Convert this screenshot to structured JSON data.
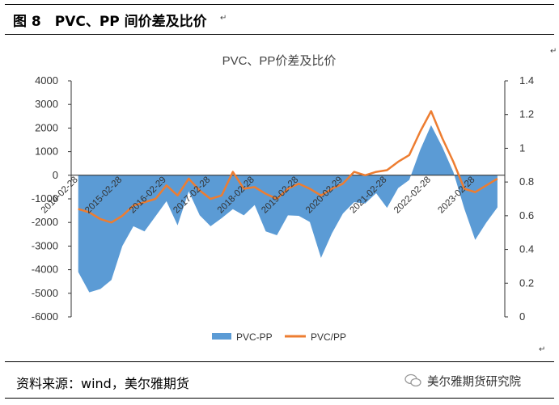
{
  "header": {
    "figure_title": "图 8　PVC、PP 间价差及比价"
  },
  "footer": {
    "source": "资料来源：wind，美尔雅期货",
    "watermark": "美尔雅期货研究院"
  },
  "marks": {
    "paragraph": "↵"
  },
  "chart_data": {
    "type": "area",
    "title": "PVC、PP价差及比价",
    "x_ticks": [
      "2014-02-28",
      "2015-02-28",
      "2016-02-29",
      "2017-02-28",
      "2018-02-28",
      "2019-02-28",
      "2020-02-29",
      "2021-02-28",
      "2022-02-28",
      "2023-02-28"
    ],
    "y_left": {
      "ticks": [
        "4000",
        "3000",
        "2000",
        "1000",
        "0",
        "-1000",
        "-2000",
        "-3000",
        "-4000",
        "-5000",
        "-6000"
      ],
      "ylim": [
        -6000,
        4000
      ]
    },
    "y_right": {
      "ticks": [
        "1.4",
        "1.2",
        "1",
        "0.8",
        "0.6",
        "0.4",
        "0.2",
        "0"
      ],
      "ylim": [
        0,
        1.4
      ]
    },
    "legend_position": "bottom",
    "colors": {
      "spread": "#5b9bd5",
      "ratio": "#ed7d31"
    },
    "series": [
      {
        "name": "PVC-PP",
        "axis": "left",
        "style": "area",
        "x": [
          "2014-02-28",
          "2014-05-31",
          "2014-08-31",
          "2014-11-30",
          "2015-02-28",
          "2015-05-31",
          "2015-08-31",
          "2015-11-30",
          "2016-02-29",
          "2016-05-31",
          "2016-08-31",
          "2016-11-30",
          "2017-02-28",
          "2017-05-31",
          "2017-08-31",
          "2017-11-30",
          "2018-02-28",
          "2018-05-31",
          "2018-08-31",
          "2018-11-30",
          "2019-02-28",
          "2019-05-31",
          "2019-08-31",
          "2019-11-30",
          "2020-02-29",
          "2020-05-31",
          "2020-08-31",
          "2020-11-30",
          "2021-02-28",
          "2021-05-31",
          "2021-08-31",
          "2021-11-30",
          "2022-02-28",
          "2022-05-31",
          "2022-08-31",
          "2022-11-30",
          "2023-02-28",
          "2023-05-31",
          "2023-08-31"
        ],
        "values": [
          -3800,
          -4900,
          -5000,
          -4200,
          -3000,
          -2400,
          -2200,
          -1800,
          -1400,
          -2000,
          -800,
          -1400,
          -2100,
          -2000,
          -1200,
          -1700,
          -1500,
          -2200,
          -2600,
          -2000,
          -1600,
          -2100,
          -3200,
          -2400,
          -1800,
          -900,
          -1200,
          -1000,
          -1200,
          -600,
          -500,
          1200,
          2000,
          1500,
          200,
          -1600,
          -2500,
          -2000,
          -1600
        ]
      },
      {
        "name": "PVC/PP",
        "axis": "right",
        "style": "line",
        "x": [
          "2014-02-28",
          "2014-05-31",
          "2014-08-31",
          "2014-11-30",
          "2015-02-28",
          "2015-05-31",
          "2015-08-31",
          "2015-11-30",
          "2016-02-29",
          "2016-05-31",
          "2016-08-31",
          "2016-11-30",
          "2017-02-28",
          "2017-05-31",
          "2017-08-31",
          "2017-11-30",
          "2018-02-28",
          "2018-05-31",
          "2018-08-31",
          "2018-11-30",
          "2019-02-28",
          "2019-05-31",
          "2019-08-31",
          "2019-11-30",
          "2020-02-29",
          "2020-05-31",
          "2020-08-31",
          "2020-11-30",
          "2021-02-28",
          "2021-05-31",
          "2021-08-31",
          "2021-11-30",
          "2022-02-28",
          "2022-05-31",
          "2022-08-31",
          "2022-11-30",
          "2023-02-28",
          "2023-05-31",
          "2023-08-31"
        ],
        "values": [
          0.64,
          0.62,
          0.58,
          0.56,
          0.6,
          0.66,
          0.68,
          0.7,
          0.78,
          0.72,
          0.82,
          0.75,
          0.7,
          0.72,
          0.86,
          0.76,
          0.77,
          0.73,
          0.7,
          0.76,
          0.79,
          0.76,
          0.72,
          0.76,
          0.79,
          0.86,
          0.84,
          0.86,
          0.87,
          0.92,
          0.96,
          1.1,
          1.22,
          1.06,
          0.92,
          0.76,
          0.74,
          0.78,
          0.82
        ]
      }
    ]
  }
}
